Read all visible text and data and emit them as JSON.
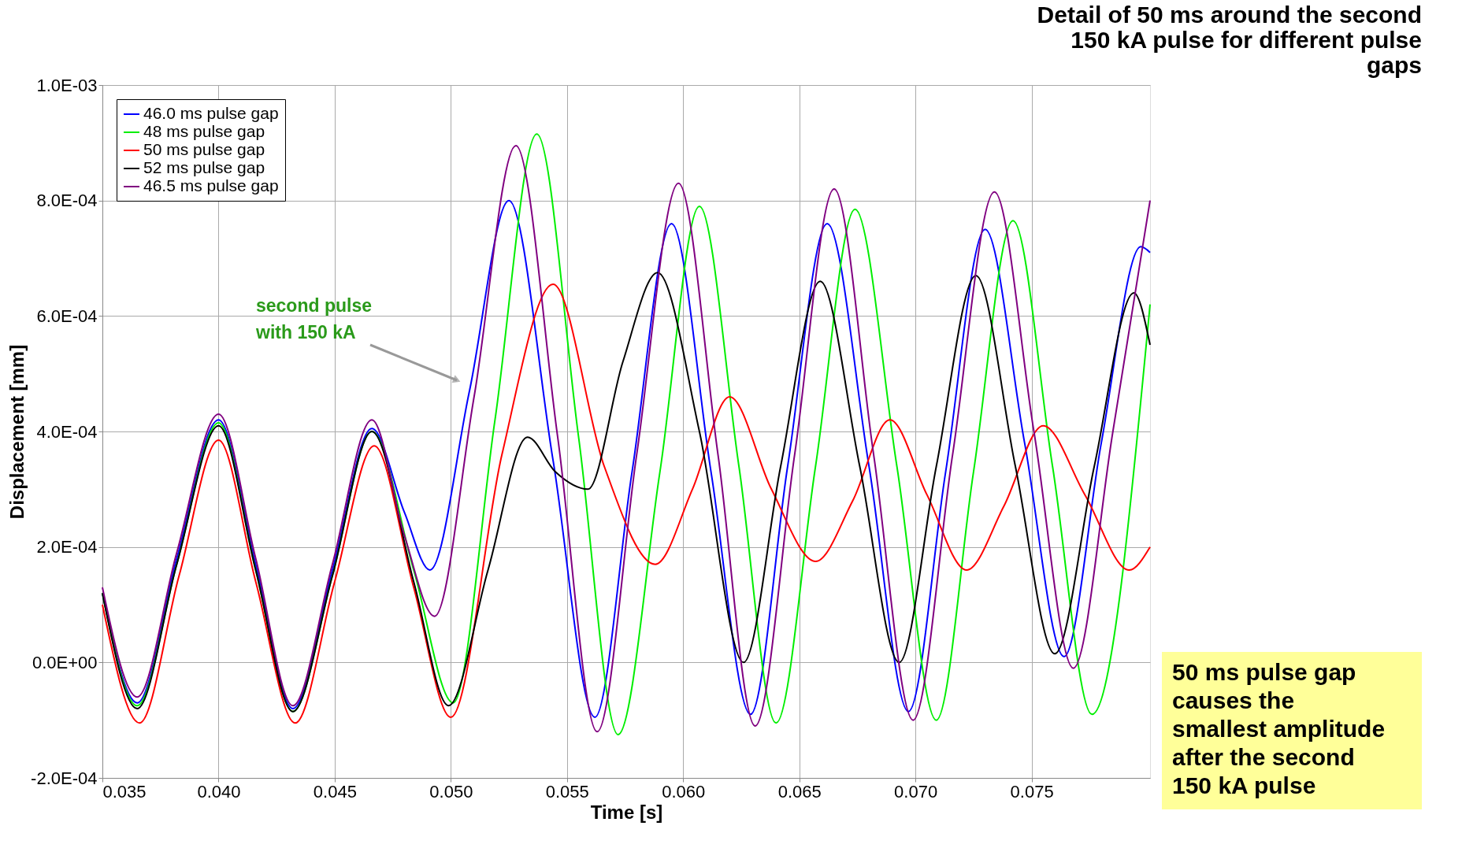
{
  "chart_data": {
    "type": "line",
    "title": "Detail of 50 ms around the second 150 kA pulse for different pulse gaps",
    "xlabel": "Time  [s]",
    "ylabel": "Displacement  [mm]",
    "xlim": [
      0.035,
      0.0801
    ],
    "xticks": [
      0.035,
      {
        "value": 0.04,
        "label": "0.040"
      },
      0.045,
      {
        "value": 0.05,
        "label": "0.050"
      },
      0.055,
      {
        "value": 0.06,
        "label": "0.060"
      },
      0.065,
      {
        "value": 0.07,
        "label": "0.070"
      },
      0.075
    ],
    "ylim": [
      -0.0002,
      0.001
    ],
    "yticks": [
      {
        "value": -0.0002,
        "label": "-2.0E-04"
      },
      {
        "value": 0,
        "label": "0.0E+00"
      },
      {
        "value": 0.0002,
        "label": "2.0E-04"
      },
      {
        "value": 0.0004,
        "label": "4.0E-04"
      },
      {
        "value": 0.0006,
        "label": "6.0E-04"
      },
      {
        "value": 0.0008,
        "label": "8.0E-04"
      },
      {
        "value": 0.001,
        "label": "1.0E-03"
      }
    ],
    "grid": true,
    "legend": "top left",
    "marker": "none",
    "line_style": "solid",
    "annotations": [
      "second pulse with 150 kA",
      "50 ms pulse gap causes the smallest amplitude after the second 150 kA pulse"
    ],
    "series": [
      {
        "name": "46.0 ms pulse gap",
        "color": "#0000ff",
        "x": [
          0.035,
          0.0365,
          0.0382,
          0.04,
          0.0416,
          0.0432,
          0.0449,
          0.0466,
          0.048,
          0.0491,
          0.0508,
          0.0525,
          0.0544,
          0.0562,
          0.0578,
          0.0595,
          0.0612,
          0.0629,
          0.0645,
          0.0662,
          0.068,
          0.0697,
          0.0713,
          0.073,
          0.0747,
          0.0764,
          0.078,
          0.0797,
          0.0801
        ],
        "values": [
          0.00012,
          -7e-05,
          0.00018,
          0.00042,
          0.00017,
          -8e-05,
          0.00016,
          0.000405,
          0.00026,
          0.00016,
          0.00047,
          0.0008,
          0.00035,
          -9.5e-05,
          0.00033,
          0.00076,
          0.00033,
          -9e-05,
          0.00034,
          0.00076,
          0.00034,
          -8.5e-05,
          0.00033,
          0.00075,
          0.00038,
          1e-05,
          0.00038,
          0.00072,
          0.00071
        ]
      },
      {
        "name": "48 ms pulse gap",
        "color": "#00ee00",
        "x": [
          0.035,
          0.0365,
          0.0382,
          0.04,
          0.0416,
          0.0432,
          0.0449,
          0.0466,
          0.0484,
          0.0501,
          0.0519,
          0.0537,
          0.0555,
          0.0572,
          0.059,
          0.0607,
          0.0624,
          0.064,
          0.0657,
          0.0674,
          0.0692,
          0.0709,
          0.0725,
          0.0742,
          0.0759,
          0.0776,
          0.0801
        ],
        "values": [
          0.00012,
          -7.5e-05,
          0.00017,
          0.000415,
          0.00016,
          -8.5e-05,
          0.00015,
          0.0004,
          0.00016,
          -7e-05,
          0.00042,
          0.000915,
          0.00039,
          -0.000125,
          0.00033,
          0.00079,
          0.00034,
          -0.000105,
          0.00034,
          0.000785,
          0.00034,
          -0.0001,
          0.00033,
          0.000765,
          0.00034,
          -9e-05,
          0.00062
        ]
      },
      {
        "name": "50 ms pulse gap",
        "color": "#ff0000",
        "x": [
          0.035,
          0.0366,
          0.0383,
          0.04,
          0.0416,
          0.0433,
          0.045,
          0.0467,
          0.0484,
          0.05,
          0.0522,
          0.0544,
          0.0566,
          0.0588,
          0.0604,
          0.062,
          0.0638,
          0.0657,
          0.0673,
          0.0689,
          0.0705,
          0.0722,
          0.0738,
          0.0755,
          0.0773,
          0.0792,
          0.0801
        ],
        "values": [
          0.0001,
          -0.000105,
          0.00015,
          0.000385,
          0.00014,
          -0.000105,
          0.00014,
          0.000375,
          0.00013,
          -9.5e-05,
          0.00036,
          0.000655,
          0.00034,
          0.00017,
          0.0003,
          0.00046,
          0.0003,
          0.000175,
          0.00028,
          0.00042,
          0.00029,
          0.00016,
          0.00027,
          0.00041,
          0.00029,
          0.00016,
          0.0002
        ]
      },
      {
        "name": "52 ms pulse gap",
        "color": "#000000",
        "x": [
          0.035,
          0.0365,
          0.0382,
          0.04,
          0.0416,
          0.0432,
          0.0449,
          0.0466,
          0.0484,
          0.0499,
          0.0516,
          0.0533,
          0.0545,
          0.0559,
          0.0574,
          0.0589,
          0.0607,
          0.0626,
          0.0642,
          0.0659,
          0.0676,
          0.0693,
          0.0709,
          0.0726,
          0.0743,
          0.076,
          0.0777,
          0.0794,
          0.0801
        ],
        "values": [
          0.00012,
          -8e-05,
          0.00017,
          0.00041,
          0.00016,
          -8.5e-05,
          0.00015,
          0.0004,
          0.00014,
          -7.5e-05,
          0.00016,
          0.00039,
          0.00033,
          0.0003,
          0.00052,
          0.000675,
          0.0004,
          0.0,
          0.00034,
          0.00066,
          0.00034,
          0.0,
          0.00034,
          0.00067,
          0.00034,
          1.5e-05,
          0.00034,
          0.00064,
          0.00055
        ]
      },
      {
        "name": "46.5 ms pulse gap",
        "color": "#800080",
        "x": [
          0.035,
          0.0365,
          0.0382,
          0.04,
          0.0416,
          0.0432,
          0.0449,
          0.0466,
          0.048,
          0.0493,
          0.051,
          0.0528,
          0.0546,
          0.0563,
          0.058,
          0.0598,
          0.0615,
          0.0631,
          0.0648,
          0.0665,
          0.0682,
          0.0699,
          0.0716,
          0.0734,
          0.0751,
          0.0768,
          0.0785,
          0.0801
        ],
        "values": [
          0.00013,
          -6e-05,
          0.00019,
          0.00043,
          0.00018,
          -7.5e-05,
          0.00017,
          0.00042,
          0.00022,
          8e-05,
          0.00046,
          0.000895,
          0.00039,
          -0.00012,
          0.00036,
          0.00083,
          0.00036,
          -0.00011,
          0.00036,
          0.00082,
          0.00036,
          -0.0001,
          0.00036,
          0.000815,
          0.0004,
          -1e-05,
          0.0004,
          0.0008
        ]
      }
    ]
  }
}
